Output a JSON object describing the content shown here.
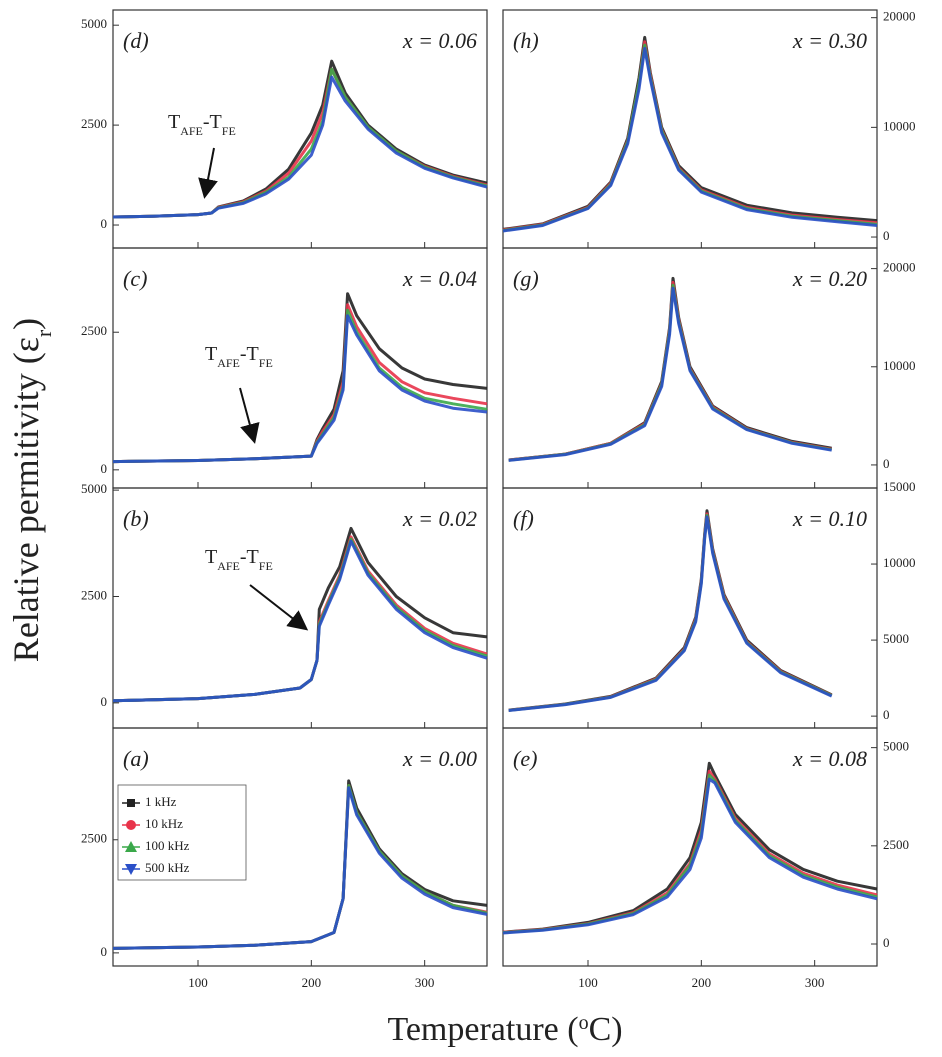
{
  "y_label": {
    "text": "Relative permitivity (ε",
    "sub": "r",
    "end": ")"
  },
  "x_label": {
    "text": "Temperature (",
    "sup": "o",
    "end": "C)"
  },
  "chart_data": [
    {
      "type": "line",
      "label": "(d)",
      "annotation_x": "x = 0.06",
      "annotation": {
        "t1": "T",
        "s1": "AFE",
        "t2": "-T",
        "s2": "FE"
      },
      "xlim": [
        25,
        355
      ],
      "xticks": [
        100,
        200,
        300
      ],
      "ylim": [
        -575,
        5380
      ],
      "yticks": [
        0,
        2500,
        5000
      ],
      "yaxis": "left",
      "x": [
        25,
        60,
        100,
        112,
        118,
        140,
        160,
        180,
        200,
        210,
        218,
        230,
        250,
        275,
        300,
        325,
        355
      ],
      "series": [
        {
          "color": "#222222",
          "values": [
            200,
            220,
            260,
            300,
            450,
            600,
            900,
            1400,
            2300,
            3000,
            4100,
            3300,
            2500,
            1900,
            1500,
            1250,
            1050
          ]
        },
        {
          "color": "#e8334a",
          "values": [
            200,
            220,
            260,
            300,
            440,
            580,
            850,
            1300,
            2100,
            2800,
            3900,
            3200,
            2450,
            1850,
            1470,
            1220,
            1000
          ]
        },
        {
          "color": "#3aa84a",
          "values": [
            200,
            220,
            260,
            300,
            430,
            560,
            820,
            1200,
            1900,
            2600,
            3900,
            3200,
            2450,
            1850,
            1450,
            1200,
            980
          ]
        },
        {
          "color": "#2a4fc8",
          "values": [
            200,
            220,
            260,
            300,
            420,
            540,
            780,
            1150,
            1750,
            2500,
            3700,
            3100,
            2400,
            1800,
            1420,
            1180,
            950
          ]
        }
      ]
    },
    {
      "type": "line",
      "label": "(c)",
      "annotation_x": "x = 0.04",
      "annotation": {
        "t1": "T",
        "s1": "AFE",
        "t2": "-T",
        "s2": "FE"
      },
      "xlim": [
        25,
        355
      ],
      "xticks": [
        100,
        200,
        300
      ],
      "ylim": [
        -330,
        4030
      ],
      "yticks": [
        0,
        2500
      ],
      "yaxis": "left",
      "x": [
        25,
        100,
        150,
        200,
        205,
        210,
        220,
        228,
        232,
        240,
        260,
        280,
        300,
        325,
        355
      ],
      "series": [
        {
          "color": "#222222",
          "values": [
            150,
            170,
            200,
            250,
            550,
            750,
            1100,
            1800,
            3200,
            2800,
            2200,
            1850,
            1650,
            1550,
            1480
          ]
        },
        {
          "color": "#e8334a",
          "values": [
            150,
            170,
            200,
            250,
            520,
            700,
            1000,
            1600,
            3000,
            2600,
            1950,
            1600,
            1400,
            1300,
            1200
          ]
        },
        {
          "color": "#3aa84a",
          "values": [
            150,
            170,
            200,
            250,
            500,
            650,
            950,
            1500,
            2900,
            2500,
            1850,
            1500,
            1300,
            1200,
            1100
          ]
        },
        {
          "color": "#2a4fc8",
          "values": [
            150,
            170,
            200,
            250,
            480,
            620,
            900,
            1450,
            2800,
            2450,
            1800,
            1450,
            1250,
            1120,
            1050
          ]
        }
      ]
    },
    {
      "type": "line",
      "label": "(b)",
      "annotation_x": "x = 0.02",
      "annotation": {
        "t1": "T",
        "s1": "AFE",
        "t2": "-T",
        "s2": "FE"
      },
      "xlim": [
        25,
        355
      ],
      "xticks": [
        100,
        200,
        300
      ],
      "ylim": [
        -590,
        5050
      ],
      "yticks": [
        0,
        2500,
        5000
      ],
      "yaxis": "left",
      "x": [
        25,
        100,
        150,
        190,
        200,
        205,
        207,
        215,
        225,
        235,
        250,
        275,
        300,
        325,
        355
      ],
      "series": [
        {
          "color": "#222222",
          "values": [
            50,
            100,
            200,
            350,
            550,
            1000,
            2200,
            2700,
            3200,
            4100,
            3300,
            2500,
            2000,
            1650,
            1550
          ]
        },
        {
          "color": "#e8334a",
          "values": [
            50,
            100,
            200,
            350,
            550,
            1000,
            1900,
            2400,
            3000,
            3900,
            3100,
            2300,
            1750,
            1400,
            1150
          ]
        },
        {
          "color": "#3aa84a",
          "values": [
            50,
            100,
            200,
            350,
            550,
            1000,
            1850,
            2350,
            2950,
            3850,
            3050,
            2250,
            1700,
            1350,
            1100
          ]
        },
        {
          "color": "#2a4fc8",
          "values": [
            50,
            100,
            200,
            350,
            550,
            1000,
            1800,
            2300,
            2900,
            3800,
            3000,
            2200,
            1650,
            1300,
            1050
          ]
        }
      ]
    },
    {
      "type": "line",
      "label": "(a)",
      "annotation_x": "x = 0.00",
      "show_xtick_labels": true,
      "legend": "upper left",
      "xlim": [
        25,
        355
      ],
      "xticks": [
        100,
        200,
        300
      ],
      "ylim": [
        -290,
        4970
      ],
      "yticks": [
        0,
        2500
      ],
      "yaxis": "left",
      "x": [
        25,
        100,
        150,
        200,
        220,
        228,
        233,
        240,
        260,
        280,
        300,
        325,
        355
      ],
      "series": [
        {
          "name": "1  kHz",
          "color": "#222222",
          "values": [
            100,
            130,
            170,
            250,
            450,
            1200,
            3800,
            3200,
            2300,
            1750,
            1400,
            1150,
            1050
          ]
        },
        {
          "name": "10 kHz",
          "color": "#e8334a",
          "values": [
            100,
            130,
            170,
            250,
            450,
            1200,
            3700,
            3100,
            2250,
            1700,
            1350,
            1050,
            900
          ]
        },
        {
          "name": "100 kHz",
          "color": "#3aa84a",
          "values": [
            100,
            130,
            170,
            250,
            450,
            1200,
            3700,
            3100,
            2250,
            1700,
            1350,
            1050,
            880
          ]
        },
        {
          "name": "500 kHz",
          "color": "#2a4fc8",
          "values": [
            100,
            130,
            170,
            250,
            450,
            1200,
            3650,
            3050,
            2200,
            1650,
            1300,
            1000,
            850
          ]
        }
      ]
    },
    {
      "type": "line",
      "label": "(h)",
      "annotation_x": "x = 0.30",
      "xlim": [
        25,
        355
      ],
      "xticks": [
        100,
        200,
        300
      ],
      "ylim": [
        -1000,
        20700
      ],
      "yticks": [
        0,
        10000,
        20000
      ],
      "yaxis": "right",
      "x": [
        25,
        60,
        100,
        120,
        135,
        145,
        150,
        155,
        165,
        180,
        200,
        240,
        280,
        320,
        355
      ],
      "series": [
        {
          "color": "#222222",
          "values": [
            700,
            1200,
            2800,
            5000,
            9000,
            14500,
            18200,
            15000,
            10000,
            6500,
            4500,
            2900,
            2200,
            1800,
            1500
          ]
        },
        {
          "color": "#e8334a",
          "values": [
            650,
            1150,
            2700,
            4900,
            8800,
            14000,
            17800,
            14800,
            9800,
            6300,
            4300,
            2700,
            2000,
            1600,
            1300
          ]
        },
        {
          "color": "#3aa84a",
          "values": [
            600,
            1100,
            2650,
            4800,
            8700,
            14000,
            17500,
            14600,
            9700,
            6200,
            4200,
            2600,
            1900,
            1500,
            1150
          ]
        },
        {
          "color": "#2a4fc8",
          "values": [
            550,
            1050,
            2600,
            4700,
            8500,
            13500,
            17200,
            14400,
            9500,
            6100,
            4100,
            2500,
            1800,
            1400,
            1050
          ]
        }
      ]
    },
    {
      "type": "line",
      "label": "(g)",
      "annotation_x": "x = 0.20",
      "xlim": [
        25,
        355
      ],
      "xticks": [
        100,
        200,
        300
      ],
      "ylim": [
        -2350,
        22100
      ],
      "yticks": [
        0,
        10000,
        20000
      ],
      "yaxis": "right",
      "x": [
        30,
        80,
        120,
        150,
        165,
        172,
        175,
        180,
        190,
        210,
        240,
        280,
        315
      ],
      "series": [
        {
          "color": "#222222",
          "values": [
            500,
            1100,
            2200,
            4300,
            8500,
            14000,
            19000,
            15000,
            10000,
            6000,
            3800,
            2400,
            1700
          ]
        },
        {
          "color": "#e8334a",
          "values": [
            500,
            1100,
            2200,
            4200,
            8300,
            13800,
            18600,
            14800,
            9800,
            5900,
            3700,
            2300,
            1600
          ]
        },
        {
          "color": "#3aa84a",
          "values": [
            480,
            1080,
            2150,
            4100,
            8200,
            13600,
            18300,
            14600,
            9700,
            5800,
            3650,
            2250,
            1550
          ]
        },
        {
          "color": "#2a4fc8",
          "values": [
            460,
            1050,
            2100,
            4000,
            8000,
            13300,
            18000,
            14400,
            9600,
            5700,
            3600,
            2200,
            1500
          ]
        }
      ]
    },
    {
      "type": "line",
      "label": "(f)",
      "annotation_x": "x = 0.10",
      "xlim": [
        25,
        355
      ],
      "xticks": [
        100,
        200,
        300
      ],
      "ylim": [
        -780,
        15000
      ],
      "yticks": [
        0,
        5000,
        10000,
        15000
      ],
      "yaxis": "right",
      "x": [
        30,
        80,
        120,
        160,
        185,
        195,
        200,
        203,
        205,
        210,
        220,
        240,
        270,
        315
      ],
      "series": [
        {
          "color": "#222222",
          "values": [
            400,
            800,
            1300,
            2500,
            4500,
            6500,
            9000,
            12000,
            13500,
            11000,
            8000,
            5000,
            3000,
            1400
          ]
        },
        {
          "color": "#e8334a",
          "values": [
            390,
            780,
            1270,
            2450,
            4400,
            6400,
            8900,
            11900,
            13300,
            10900,
            7900,
            4900,
            2950,
            1370
          ]
        },
        {
          "color": "#3aa84a",
          "values": [
            380,
            770,
            1250,
            2400,
            4350,
            6300,
            8800,
            11800,
            13200,
            10800,
            7800,
            4850,
            2900,
            1350
          ]
        },
        {
          "color": "#2a4fc8",
          "values": [
            370,
            760,
            1230,
            2350,
            4300,
            6200,
            8700,
            11700,
            13100,
            10700,
            7700,
            4800,
            2850,
            1320
          ]
        }
      ]
    },
    {
      "type": "line",
      "label": "(e)",
      "annotation_x": "x = 0.08",
      "show_xtick_labels": true,
      "xlim": [
        25,
        355
      ],
      "xticks": [
        100,
        200,
        300
      ],
      "ylim": [
        -560,
        5500
      ],
      "yticks": [
        0,
        2500,
        5000
      ],
      "yaxis": "right",
      "x": [
        25,
        60,
        100,
        140,
        170,
        190,
        200,
        207,
        212,
        230,
        260,
        290,
        320,
        355
      ],
      "series": [
        {
          "color": "#222222",
          "values": [
            300,
            380,
            550,
            850,
            1400,
            2200,
            3100,
            4600,
            4300,
            3300,
            2400,
            1900,
            1600,
            1400
          ]
        },
        {
          "color": "#e8334a",
          "values": [
            300,
            370,
            520,
            800,
            1300,
            2050,
            2900,
            4400,
            4200,
            3200,
            2300,
            1800,
            1500,
            1250
          ]
        },
        {
          "color": "#3aa84a",
          "values": [
            290,
            360,
            510,
            780,
            1250,
            2000,
            2800,
            4300,
            4150,
            3150,
            2250,
            1750,
            1450,
            1200
          ]
        },
        {
          "color": "#2a4fc8",
          "values": [
            280,
            350,
            490,
            750,
            1200,
            1900,
            2700,
            4200,
            4100,
            3100,
            2200,
            1700,
            1400,
            1150
          ]
        }
      ]
    }
  ]
}
